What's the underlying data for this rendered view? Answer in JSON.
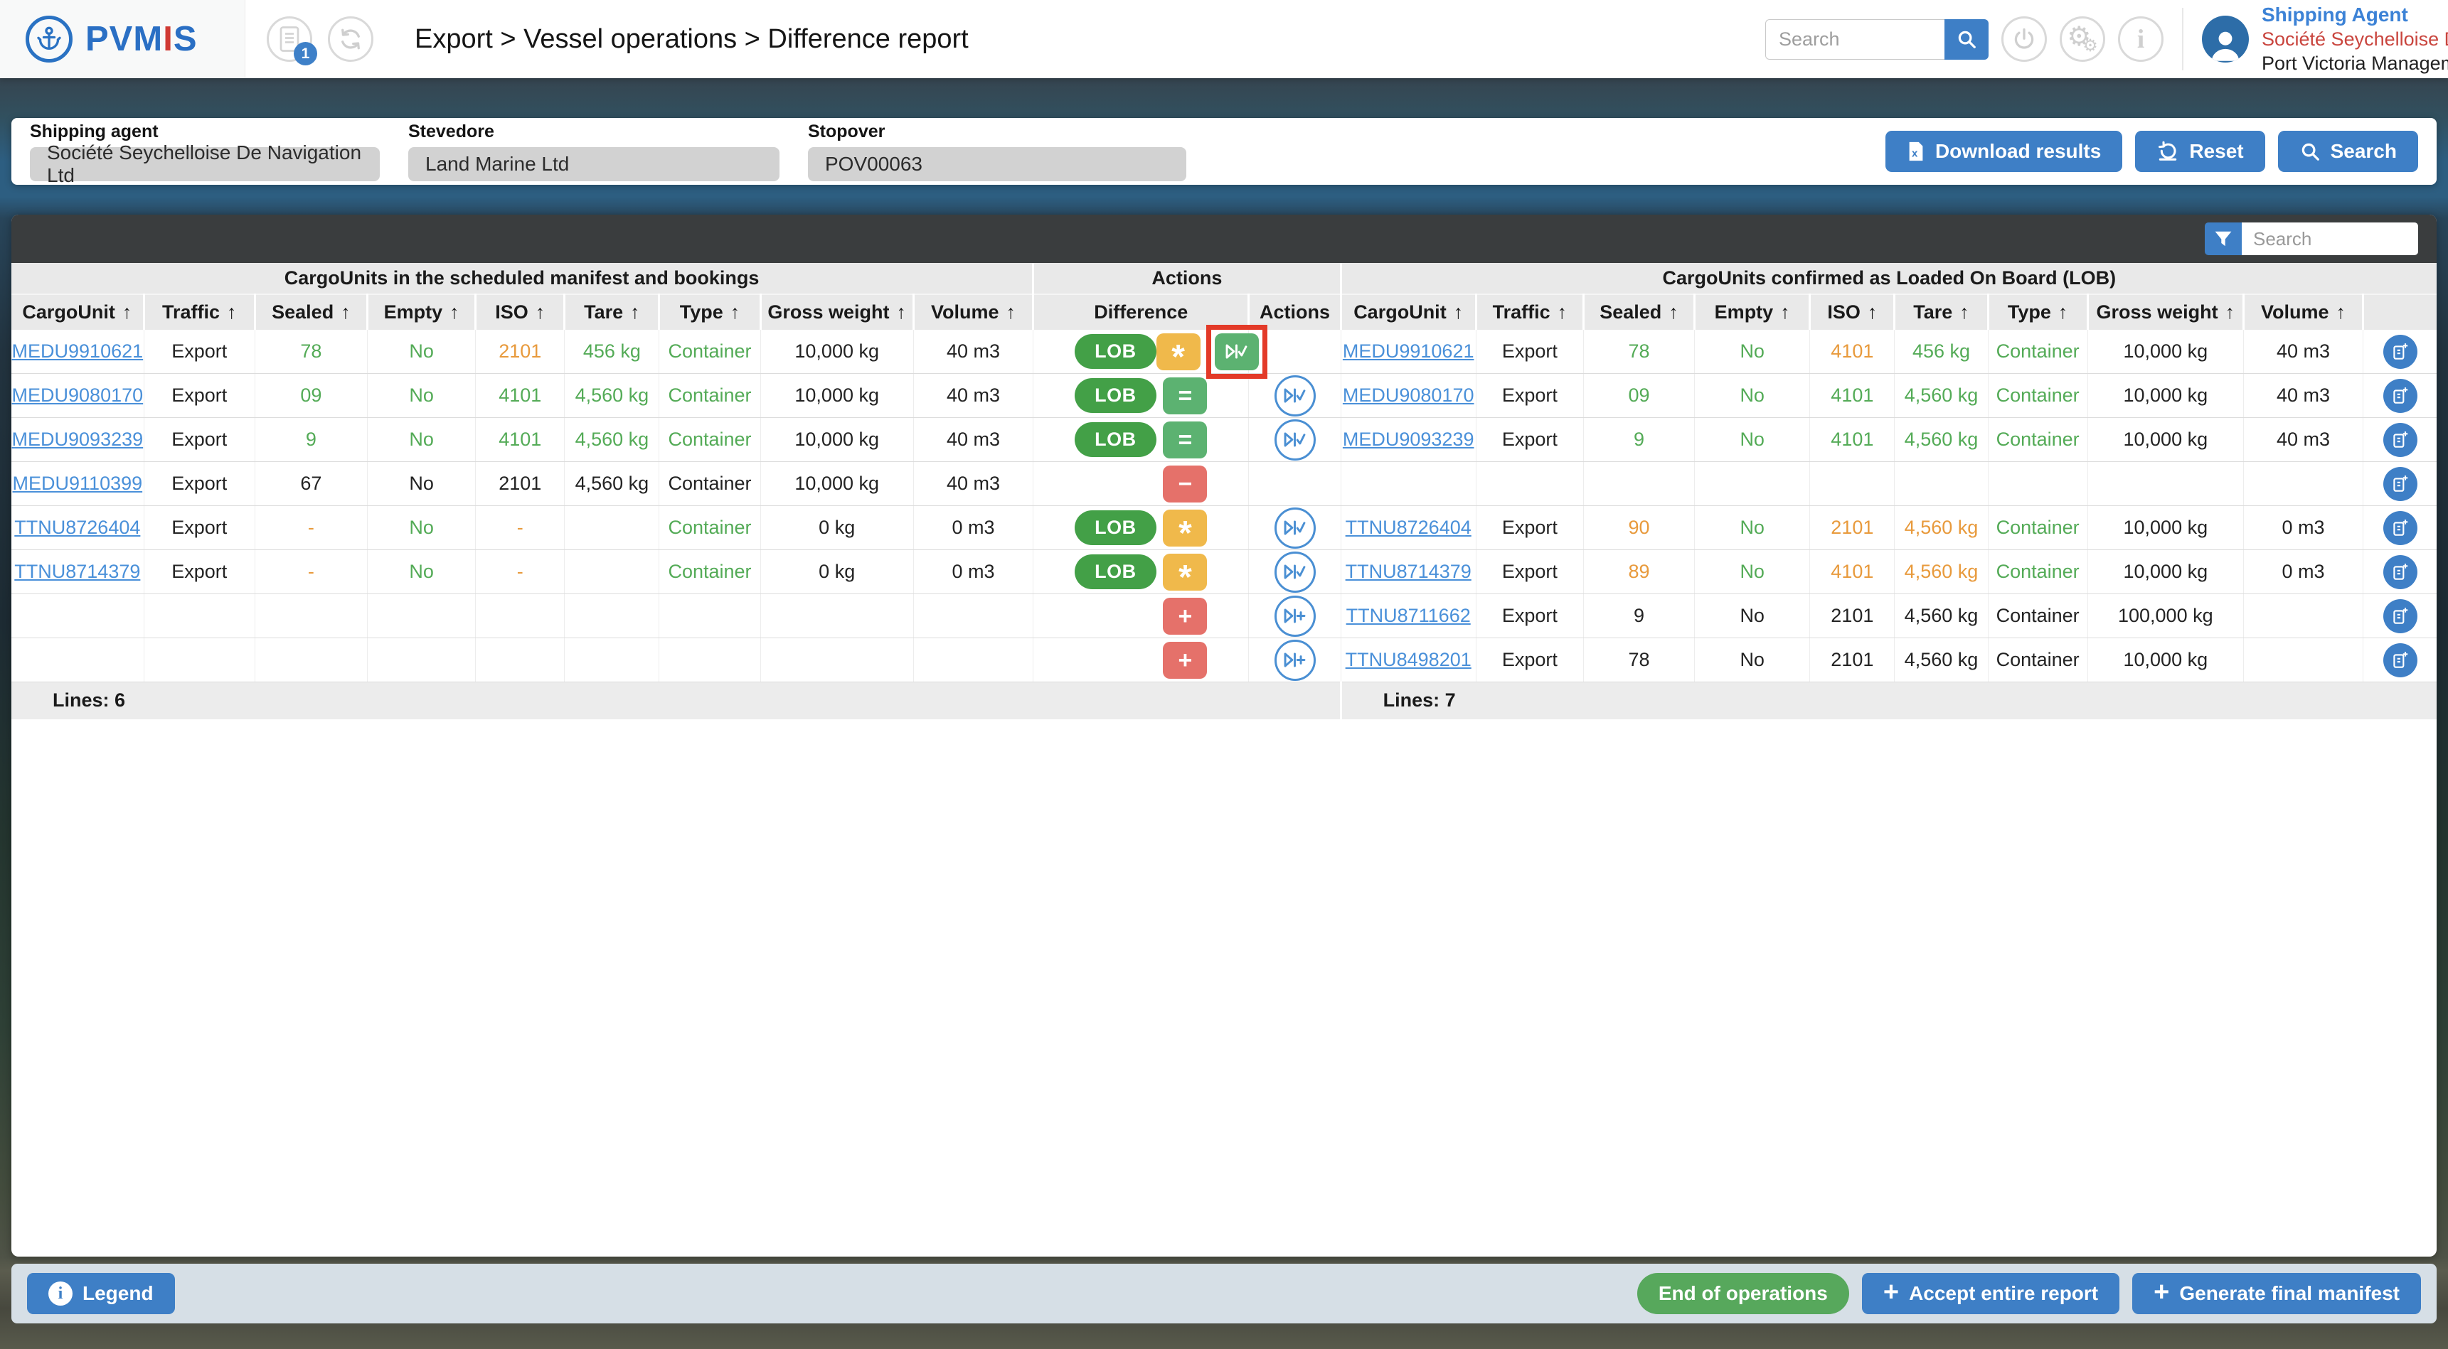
{
  "header": {
    "brand": {
      "name_part1": "PVM",
      "name_part2": "I",
      "name_part3": "S"
    },
    "notification_count": "1",
    "breadcrumb": "Export > Vessel operations > Difference report",
    "search_placeholder": "Search",
    "user": {
      "role": "Shipping Agent",
      "company": "Société Seychelloise De Navigation Ltd",
      "organization": "Port Victoria Management"
    }
  },
  "filters": {
    "fields": [
      {
        "label": "Shipping agent",
        "value": "Société Seychelloise De Navigation Ltd"
      },
      {
        "label": "Stevedore",
        "value": "Land Marine Ltd"
      },
      {
        "label": "Stopover",
        "value": "POV00063"
      }
    ],
    "download_label": "Download results",
    "reset_label": "Reset",
    "search_label": "Search"
  },
  "table": {
    "filter_placeholder": "Search",
    "groups": {
      "left": "CargoUnits in the scheduled manifest and bookings",
      "middle": "Actions",
      "right": "CargoUnits confirmed as Loaded On Board (LOB)"
    },
    "columns": [
      "CargoUnit",
      "Traffic",
      "Sealed",
      "Empty",
      "ISO",
      "Tare",
      "Type",
      "Gross weight",
      "Volume"
    ],
    "middle_columns": [
      "Difference",
      "Actions"
    ],
    "sort_arrow": "↑",
    "lob_badge": "LOB",
    "footer": {
      "left": "Lines: 6",
      "right": "Lines: 7"
    },
    "rows": [
      {
        "left": [
          [
            "MEDU9910621",
            "l"
          ],
          [
            "Export",
            ""
          ],
          [
            "78",
            "g"
          ],
          [
            "No",
            "g"
          ],
          [
            "2101",
            "o"
          ],
          [
            "456 kg",
            "g"
          ],
          [
            "Container",
            "g"
          ],
          [
            "10,000 kg",
            ""
          ],
          [
            "40 m3",
            ""
          ]
        ],
        "difference": {
          "lob": true,
          "badges": [
            {
              "glyph": "star",
              "color": "orange"
            },
            {
              "glyph": "play-check",
              "color": "green",
              "highlighted": true
            }
          ]
        },
        "action": null,
        "right": [
          [
            "MEDU9910621",
            "l"
          ],
          [
            "Export",
            ""
          ],
          [
            "78",
            "g"
          ],
          [
            "No",
            "g"
          ],
          [
            "4101",
            "o"
          ],
          [
            "456 kg",
            "g"
          ],
          [
            "Container",
            "g"
          ],
          [
            "10,000 kg",
            ""
          ],
          [
            "40 m3",
            ""
          ]
        ],
        "edit": true
      },
      {
        "left": [
          [
            "MEDU9080170",
            "l"
          ],
          [
            "Export",
            ""
          ],
          [
            "09",
            "g"
          ],
          [
            "No",
            "g"
          ],
          [
            "4101",
            "g"
          ],
          [
            "4,560 kg",
            "g"
          ],
          [
            "Container",
            "g"
          ],
          [
            "10,000 kg",
            ""
          ],
          [
            "40 m3",
            ""
          ]
        ],
        "difference": {
          "lob": true,
          "badges": [
            {
              "glyph": "equals",
              "color": "green"
            }
          ]
        },
        "action": "play-check",
        "right": [
          [
            "MEDU9080170",
            "l"
          ],
          [
            "Export",
            ""
          ],
          [
            "09",
            "g"
          ],
          [
            "No",
            "g"
          ],
          [
            "4101",
            "g"
          ],
          [
            "4,560 kg",
            "g"
          ],
          [
            "Container",
            "g"
          ],
          [
            "10,000 kg",
            ""
          ],
          [
            "40 m3",
            ""
          ]
        ],
        "edit": true
      },
      {
        "left": [
          [
            "MEDU9093239",
            "l"
          ],
          [
            "Export",
            ""
          ],
          [
            "9",
            "g"
          ],
          [
            "No",
            "g"
          ],
          [
            "4101",
            "g"
          ],
          [
            "4,560 kg",
            "g"
          ],
          [
            "Container",
            "g"
          ],
          [
            "10,000 kg",
            ""
          ],
          [
            "40 m3",
            ""
          ]
        ],
        "difference": {
          "lob": true,
          "badges": [
            {
              "glyph": "equals",
              "color": "green"
            }
          ]
        },
        "action": "play-check",
        "right": [
          [
            "MEDU9093239",
            "l"
          ],
          [
            "Export",
            ""
          ],
          [
            "9",
            "g"
          ],
          [
            "No",
            "g"
          ],
          [
            "4101",
            "g"
          ],
          [
            "4,560 kg",
            "g"
          ],
          [
            "Container",
            "g"
          ],
          [
            "10,000 kg",
            ""
          ],
          [
            "40 m3",
            ""
          ]
        ],
        "edit": true
      },
      {
        "left": [
          [
            "MEDU9110399",
            "l"
          ],
          [
            "Export",
            ""
          ],
          [
            "67",
            ""
          ],
          [
            "No",
            ""
          ],
          [
            "2101",
            ""
          ],
          [
            "4,560 kg",
            ""
          ],
          [
            "Container",
            ""
          ],
          [
            "10,000 kg",
            ""
          ],
          [
            "40 m3",
            ""
          ]
        ],
        "difference": {
          "lob": false,
          "badges": [
            {
              "glyph": "minus",
              "color": "red"
            }
          ]
        },
        "action": null,
        "right": [
          [
            "",
            ""
          ],
          [
            "",
            ""
          ],
          [
            "",
            ""
          ],
          [
            "",
            ""
          ],
          [
            "",
            ""
          ],
          [
            "",
            ""
          ],
          [
            "",
            ""
          ],
          [
            "",
            ""
          ],
          [
            "",
            ""
          ]
        ],
        "edit": true
      },
      {
        "left": [
          [
            "TTNU8726404",
            "l"
          ],
          [
            "Export",
            ""
          ],
          [
            "-",
            "o"
          ],
          [
            "No",
            "g"
          ],
          [
            "-",
            "o"
          ],
          [
            "",
            ""
          ],
          [
            "Container",
            "g"
          ],
          [
            "0 kg",
            ""
          ],
          [
            "0 m3",
            ""
          ]
        ],
        "difference": {
          "lob": true,
          "badges": [
            {
              "glyph": "star",
              "color": "orange"
            }
          ]
        },
        "action": "play-check",
        "right": [
          [
            "TTNU8726404",
            "l"
          ],
          [
            "Export",
            ""
          ],
          [
            "90",
            "o"
          ],
          [
            "No",
            "g"
          ],
          [
            "2101",
            "o"
          ],
          [
            "4,560 kg",
            "o"
          ],
          [
            "Container",
            "g"
          ],
          [
            "10,000 kg",
            ""
          ],
          [
            "0 m3",
            ""
          ]
        ],
        "edit": true
      },
      {
        "left": [
          [
            "TTNU8714379",
            "l"
          ],
          [
            "Export",
            ""
          ],
          [
            "-",
            "o"
          ],
          [
            "No",
            "g"
          ],
          [
            "-",
            "o"
          ],
          [
            "",
            ""
          ],
          [
            "Container",
            "g"
          ],
          [
            "0 kg",
            ""
          ],
          [
            "0 m3",
            ""
          ]
        ],
        "difference": {
          "lob": true,
          "badges": [
            {
              "glyph": "star",
              "color": "orange"
            }
          ]
        },
        "action": "play-check",
        "right": [
          [
            "TTNU8714379",
            "l"
          ],
          [
            "Export",
            ""
          ],
          [
            "89",
            "o"
          ],
          [
            "No",
            "g"
          ],
          [
            "4101",
            "o"
          ],
          [
            "4,560 kg",
            "o"
          ],
          [
            "Container",
            "g"
          ],
          [
            "10,000 kg",
            ""
          ],
          [
            "0 m3",
            ""
          ]
        ],
        "edit": true
      },
      {
        "left": [
          [
            "",
            ""
          ],
          [
            "",
            ""
          ],
          [
            "",
            ""
          ],
          [
            "",
            ""
          ],
          [
            "",
            ""
          ],
          [
            "",
            ""
          ],
          [
            "",
            ""
          ],
          [
            "",
            ""
          ],
          [
            "",
            ""
          ]
        ],
        "difference": {
          "lob": false,
          "badges": [
            {
              "glyph": "plus",
              "color": "red"
            }
          ]
        },
        "action": "play-plus",
        "right": [
          [
            "TTNU8711662",
            "l"
          ],
          [
            "Export",
            ""
          ],
          [
            "9",
            ""
          ],
          [
            "No",
            ""
          ],
          [
            "2101",
            ""
          ],
          [
            "4,560 kg",
            ""
          ],
          [
            "Container",
            ""
          ],
          [
            "100,000 kg",
            ""
          ],
          [
            "",
            ""
          ]
        ],
        "edit": true
      },
      {
        "left": [
          [
            "",
            ""
          ],
          [
            "",
            ""
          ],
          [
            "",
            ""
          ],
          [
            "",
            ""
          ],
          [
            "",
            ""
          ],
          [
            "",
            ""
          ],
          [
            "",
            ""
          ],
          [
            "",
            ""
          ],
          [
            "",
            ""
          ]
        ],
        "difference": {
          "lob": false,
          "badges": [
            {
              "glyph": "plus",
              "color": "red"
            }
          ]
        },
        "action": "play-plus",
        "right": [
          [
            "TTNU8498201",
            "l"
          ],
          [
            "Export",
            ""
          ],
          [
            "78",
            ""
          ],
          [
            "No",
            ""
          ],
          [
            "2101",
            ""
          ],
          [
            "4,560 kg",
            ""
          ],
          [
            "Container",
            ""
          ],
          [
            "10,000 kg",
            ""
          ],
          [
            "",
            ""
          ]
        ],
        "edit": true
      }
    ]
  },
  "footer_bar": {
    "legend": "Legend",
    "end_operations": "End of operations",
    "accept_report": "Accept entire report",
    "generate_manifest": "Generate final manifest"
  },
  "colors": {
    "primary_blue": "#3e7fc6",
    "lob_green": "#43a047",
    "badge_green": "#5cb271",
    "badge_orange": "#f0b94b",
    "badge_red": "#e5716a",
    "text_green": "#54ab57",
    "text_orange": "#e89a3c",
    "link_blue": "#4a90d9",
    "highlight_red": "#e33a28",
    "end_operations_green": "#57a85c"
  }
}
